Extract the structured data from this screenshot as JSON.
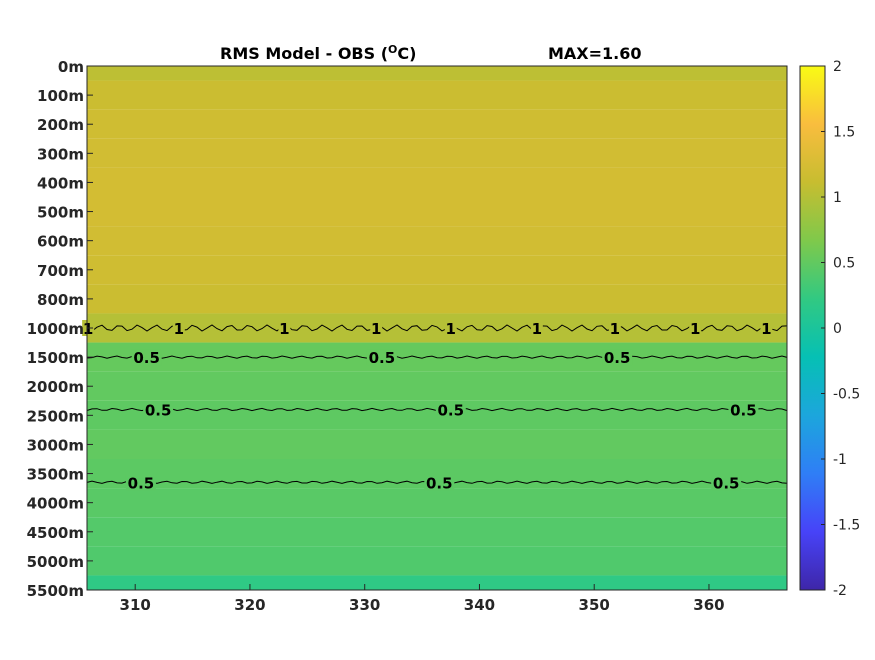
{
  "chart_data": {
    "type": "heatmap",
    "title": "RMS Model - OBS (",
    "title_unit_sup": "O",
    "title_unit_tail": "C)",
    "max_label": "MAX=1.60",
    "xlabel": "",
    "ylabel": "",
    "x_ticks": [
      "310",
      "320",
      "330",
      "340",
      "350",
      "360"
    ],
    "x_tick_values": [
      310,
      320,
      330,
      340,
      350,
      360
    ],
    "xlim": [
      305.8,
      366.8
    ],
    "depth_levels": [
      "0m",
      "100m",
      "200m",
      "300m",
      "400m",
      "500m",
      "600m",
      "700m",
      "800m",
      "1000m",
      "1500m",
      "2000m",
      "2500m",
      "3000m",
      "3500m",
      "4000m",
      "4500m",
      "5000m",
      "5500m"
    ],
    "level_values": [
      1.05,
      1.15,
      1.18,
      1.2,
      1.22,
      1.22,
      1.2,
      1.18,
      1.15,
      1.0,
      0.52,
      0.5,
      0.48,
      0.5,
      0.47,
      0.45,
      0.42,
      0.4,
      0.2
    ],
    "contours": [
      {
        "level": "1",
        "depth_index": 9,
        "labels_x": [
          305.9,
          313.8,
          323,
          331,
          337.5,
          345,
          351.8,
          358.8,
          365
        ]
      },
      {
        "level": "0.5",
        "depth_index": 10,
        "labels_x": [
          311,
          331.5,
          352
        ]
      },
      {
        "level": "0.5",
        "depth_index": 11.8,
        "labels_x": [
          312,
          337.5,
          363
        ]
      },
      {
        "level": "0.5",
        "depth_index": 14.3,
        "labels_x": [
          310.5,
          336.5,
          361.5
        ]
      }
    ],
    "colorbar": {
      "ticks": [
        "2",
        "1.5",
        "1",
        "0.5",
        "0",
        "-0.5",
        "-1",
        "-1.5",
        "-2"
      ],
      "tick_values": [
        2,
        1.5,
        1,
        0.5,
        0,
        -0.5,
        -1,
        -1.5,
        -2
      ],
      "range": [
        -2,
        2
      ],
      "colormap": "parula",
      "colors": [
        "#3e26a8",
        "#4743f8",
        "#2f7ef6",
        "#1ca6dc",
        "#06c0b4",
        "#31c982",
        "#7fc94b",
        "#c7bd30",
        "#f9bd3e",
        "#f9fb14"
      ]
    },
    "grid": false
  }
}
